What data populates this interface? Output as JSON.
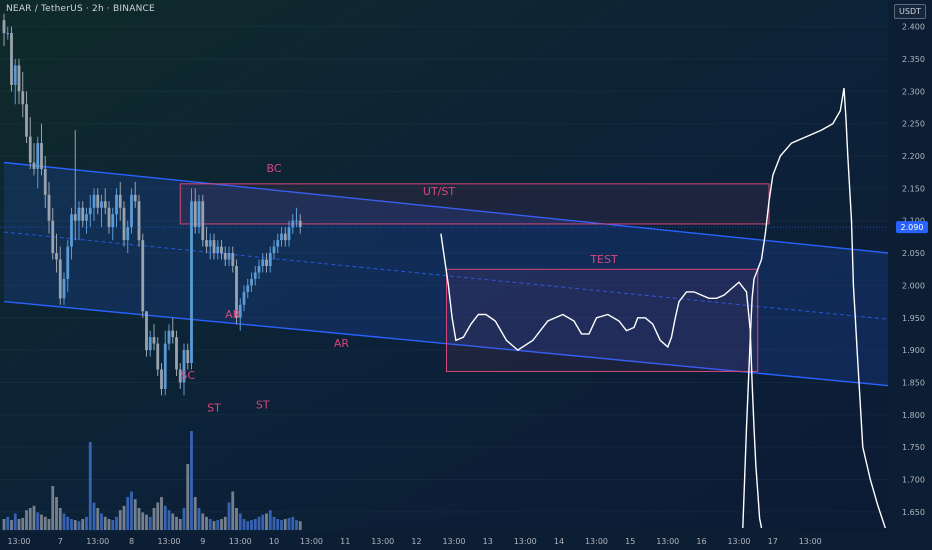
{
  "header": {
    "title": "NEAR / TetherUS · 2h · BINANCE",
    "currency": "USDT"
  },
  "colors": {
    "up": "#5b9bd5",
    "down": "#9aa3ad",
    "channel_line": "#2962ff",
    "zone_border": "#d4487a",
    "label": "#d4487a",
    "path": "#ffffff",
    "price_badge": "#2962ff"
  },
  "chart_data": {
    "type": "candlestick",
    "title": "NEAR / TetherUS · 2h · BINANCE",
    "y_axis": {
      "min": 1.625,
      "max": 2.435,
      "ticks": [
        2.4,
        2.35,
        2.3,
        2.25,
        2.2,
        2.15,
        2.1,
        2.05,
        2.0,
        1.95,
        1.9,
        1.85,
        1.8,
        1.75,
        1.7,
        1.65
      ],
      "tick_labels": [
        "2.400",
        "2.350",
        "2.300",
        "2.250",
        "2.200",
        "2.150",
        "2.100",
        "2.050",
        "2.000",
        "1.950",
        "1.900",
        "1.850",
        "1.800",
        "1.750",
        "1.700",
        "1.650"
      ]
    },
    "x_axis": {
      "labels": [
        "13:00",
        "7",
        "13:00",
        "8",
        "13:00",
        "9",
        "13:00",
        "10",
        "13:00",
        "11",
        "13:00",
        "12",
        "13:00",
        "13",
        "13:00",
        "14",
        "13:00",
        "15",
        "13:00",
        "16",
        "13:00",
        "17",
        "13:00"
      ],
      "label_bar_index": [
        4,
        15,
        25,
        34,
        44,
        53,
        63,
        72,
        82,
        91,
        101,
        110,
        120,
        129,
        139,
        148,
        158,
        167,
        177,
        186,
        196,
        205,
        215
      ]
    },
    "current_price": 2.09,
    "current_price_label": "2.090",
    "candles": [
      [
        2.41,
        2.42,
        2.37,
        2.39
      ],
      [
        2.39,
        2.4,
        2.38,
        2.39
      ],
      [
        2.39,
        2.4,
        2.3,
        2.31
      ],
      [
        2.31,
        2.35,
        2.28,
        2.34
      ],
      [
        2.34,
        2.35,
        2.28,
        2.3
      ],
      [
        2.3,
        2.33,
        2.26,
        2.28
      ],
      [
        2.28,
        2.3,
        2.22,
        2.23
      ],
      [
        2.23,
        2.26,
        2.18,
        2.19
      ],
      [
        2.19,
        2.22,
        2.17,
        2.18
      ],
      [
        2.18,
        2.23,
        2.15,
        2.22
      ],
      [
        2.22,
        2.25,
        2.17,
        2.18
      ],
      [
        2.18,
        2.2,
        2.12,
        2.14
      ],
      [
        2.14,
        2.16,
        2.08,
        2.1
      ],
      [
        2.1,
        2.12,
        2.04,
        2.05
      ],
      [
        2.05,
        2.08,
        2.02,
        2.04
      ],
      [
        2.04,
        2.06,
        1.97,
        1.98
      ],
      [
        1.98,
        2.02,
        1.97,
        2.01
      ],
      [
        2.01,
        2.07,
        1.99,
        2.06
      ],
      [
        2.06,
        2.12,
        2.04,
        2.11
      ],
      [
        2.11,
        2.24,
        2.07,
        2.1
      ],
      [
        2.1,
        2.13,
        2.07,
        2.12
      ],
      [
        2.12,
        2.13,
        2.09,
        2.1
      ],
      [
        2.1,
        2.12,
        2.08,
        2.11
      ],
      [
        2.11,
        2.14,
        2.09,
        2.12
      ],
      [
        2.12,
        2.15,
        2.1,
        2.14
      ],
      [
        2.14,
        2.15,
        2.11,
        2.12
      ],
      [
        2.12,
        2.14,
        2.09,
        2.13
      ],
      [
        2.13,
        2.15,
        2.11,
        2.12
      ],
      [
        2.12,
        2.13,
        2.08,
        2.09
      ],
      [
        2.09,
        2.12,
        2.07,
        2.11
      ],
      [
        2.11,
        2.15,
        2.09,
        2.14
      ],
      [
        2.14,
        2.16,
        2.1,
        2.12
      ],
      [
        2.12,
        2.13,
        2.06,
        2.07
      ],
      [
        2.07,
        2.1,
        2.05,
        2.09
      ],
      [
        2.09,
        2.15,
        2.08,
        2.14
      ],
      [
        2.14,
        2.16,
        2.12,
        2.13
      ],
      [
        2.13,
        2.14,
        2.06,
        2.07
      ],
      [
        2.07,
        2.08,
        1.95,
        1.96
      ],
      [
        1.96,
        1.96,
        1.89,
        1.9
      ],
      [
        1.9,
        1.93,
        1.89,
        1.92
      ],
      [
        1.92,
        1.94,
        1.9,
        1.91
      ],
      [
        1.91,
        1.92,
        1.86,
        1.87
      ],
      [
        1.87,
        1.88,
        1.83,
        1.84
      ],
      [
        1.84,
        1.93,
        1.83,
        1.91
      ],
      [
        1.91,
        1.94,
        1.9,
        1.93
      ],
      [
        1.93,
        1.95,
        1.91,
        1.92
      ],
      [
        1.92,
        1.93,
        1.86,
        1.87
      ],
      [
        1.87,
        1.88,
        1.84,
        1.85
      ],
      [
        1.85,
        1.91,
        1.83,
        1.9
      ],
      [
        1.9,
        1.91,
        1.87,
        1.88
      ],
      [
        1.88,
        2.15,
        1.87,
        2.13
      ],
      [
        2.13,
        2.15,
        2.08,
        2.09
      ],
      [
        2.09,
        2.14,
        2.08,
        2.13
      ],
      [
        2.13,
        2.14,
        2.06,
        2.07
      ],
      [
        2.07,
        2.09,
        2.05,
        2.06
      ],
      [
        2.06,
        2.08,
        2.04,
        2.07
      ],
      [
        2.07,
        2.08,
        2.04,
        2.05
      ],
      [
        2.05,
        2.07,
        2.04,
        2.06
      ],
      [
        2.06,
        2.07,
        2.04,
        2.05
      ],
      [
        2.05,
        2.06,
        2.03,
        2.04
      ],
      [
        2.04,
        2.06,
        2.03,
        2.05
      ],
      [
        2.05,
        2.06,
        2.02,
        2.03
      ],
      [
        2.03,
        2.04,
        1.94,
        1.95
      ],
      [
        1.95,
        1.98,
        1.93,
        1.97
      ],
      [
        1.97,
        2.0,
        1.96,
        1.99
      ],
      [
        1.99,
        2.01,
        1.98,
        2.0
      ],
      [
        2.0,
        2.02,
        1.99,
        2.01
      ],
      [
        2.01,
        2.03,
        2.0,
        2.02
      ],
      [
        2.02,
        2.04,
        2.01,
        2.03
      ],
      [
        2.03,
        2.05,
        2.02,
        2.04
      ],
      [
        2.04,
        2.05,
        2.02,
        2.03
      ],
      [
        2.03,
        2.06,
        2.02,
        2.05
      ],
      [
        2.05,
        2.07,
        2.04,
        2.06
      ],
      [
        2.06,
        2.08,
        2.05,
        2.07
      ],
      [
        2.07,
        2.09,
        2.06,
        2.08
      ],
      [
        2.08,
        2.09,
        2.06,
        2.07
      ],
      [
        2.07,
        2.1,
        2.06,
        2.09
      ],
      [
        2.09,
        2.11,
        2.08,
        2.1
      ],
      [
        2.1,
        2.12,
        2.09,
        2.1
      ],
      [
        2.1,
        2.11,
        2.08,
        2.09
      ]
    ],
    "volumes": [
      0.1,
      0.12,
      0.09,
      0.15,
      0.1,
      0.11,
      0.18,
      0.2,
      0.22,
      0.16,
      0.14,
      0.12,
      0.1,
      0.4,
      0.3,
      0.2,
      0.15,
      0.12,
      0.1,
      0.09,
      0.08,
      0.1,
      0.12,
      0.8,
      0.25,
      0.2,
      0.15,
      0.12,
      0.1,
      0.09,
      0.12,
      0.18,
      0.22,
      0.3,
      0.35,
      0.28,
      0.2,
      0.16,
      0.14,
      0.12,
      0.2,
      0.25,
      0.3,
      0.22,
      0.18,
      0.15,
      0.12,
      0.1,
      0.2,
      0.6,
      0.9,
      0.3,
      0.2,
      0.15,
      0.12,
      0.1,
      0.08,
      0.09,
      0.1,
      0.12,
      0.25,
      0.35,
      0.2,
      0.15,
      0.1,
      0.08,
      0.09,
      0.1,
      0.12,
      0.14,
      0.15,
      0.18,
      0.12,
      0.1,
      0.09,
      0.1,
      0.11,
      0.12,
      0.09,
      0.08
    ],
    "channel": {
      "upper": {
        "from": [
          0,
          2.19
        ],
        "to": [
          236,
          2.05
        ]
      },
      "lower": {
        "from": [
          0,
          1.975
        ],
        "to": [
          236,
          1.845
        ]
      }
    },
    "zones": [
      {
        "name": "ut-st-zone",
        "from_bar": 47,
        "to_bar": 204,
        "top": 2.157,
        "bottom": 2.095
      },
      {
        "name": "test-zone",
        "from_bar": 118,
        "to_bar": 201,
        "top": 2.025,
        "bottom": 1.867
      }
    ],
    "annotations": [
      {
        "text": "BC",
        "bar": 72,
        "price": 2.175
      },
      {
        "text": "UT/ST",
        "bar": 116,
        "price": 2.14
      },
      {
        "text": "TEST",
        "bar": 160,
        "price": 2.035
      },
      {
        "text": "AR",
        "bar": 61,
        "price": 1.95
      },
      {
        "text": "AR",
        "bar": 90,
        "price": 1.905
      },
      {
        "text": "SC",
        "bar": 49,
        "price": 1.855
      },
      {
        "text": "ST",
        "bar": 56,
        "price": 1.805
      },
      {
        "text": "ST",
        "bar": 69,
        "price": 1.81
      }
    ],
    "projection_path": [
      [
        116.5,
        2.08
      ],
      [
        118.5,
        2.0
      ],
      [
        119.5,
        1.95
      ],
      [
        120.5,
        1.915
      ],
      [
        122.5,
        1.92
      ],
      [
        124.5,
        1.94
      ],
      [
        126.5,
        1.955
      ],
      [
        128.5,
        1.955
      ],
      [
        131,
        1.945
      ],
      [
        134,
        1.915
      ],
      [
        137,
        1.9
      ],
      [
        141,
        1.915
      ],
      [
        145,
        1.945
      ],
      [
        149,
        1.955
      ],
      [
        152,
        1.945
      ],
      [
        154,
        1.925
      ],
      [
        156,
        1.925
      ],
      [
        158,
        1.95
      ],
      [
        161,
        1.955
      ],
      [
        164,
        1.945
      ],
      [
        166,
        1.93
      ],
      [
        168,
        1.935
      ],
      [
        169,
        1.95
      ],
      [
        171,
        1.95
      ],
      [
        173,
        1.94
      ],
      [
        175,
        1.915
      ],
      [
        177,
        1.905
      ],
      [
        178,
        1.92
      ],
      [
        179,
        1.95
      ],
      [
        180,
        1.975
      ],
      [
        182,
        1.99
      ],
      [
        184,
        1.99
      ],
      [
        186,
        1.985
      ],
      [
        188,
        1.98
      ],
      [
        190,
        1.98
      ],
      [
        192,
        1.985
      ],
      [
        194,
        1.995
      ],
      [
        196,
        2.005
      ],
      [
        198,
        1.99
      ],
      [
        199,
        1.93
      ],
      [
        199.5,
        1.85
      ],
      [
        200,
        1.78
      ],
      [
        200.5,
        1.72
      ],
      [
        201,
        1.68
      ],
      [
        201.5,
        1.64
      ],
      [
        202,
        1.625
      ]
    ],
    "projection_path_right": [
      [
        197,
        1.625
      ],
      [
        197.5,
        1.7
      ],
      [
        198,
        1.78
      ],
      [
        198.5,
        1.85
      ],
      [
        199,
        1.92
      ],
      [
        199.5,
        1.98
      ],
      [
        200,
        2.01
      ],
      [
        201,
        2.025
      ],
      [
        202,
        2.04
      ],
      [
        203,
        2.08
      ],
      [
        204,
        2.13
      ],
      [
        205,
        2.17
      ],
      [
        207,
        2.2
      ],
      [
        210,
        2.22
      ],
      [
        214,
        2.23
      ],
      [
        218,
        2.24
      ],
      [
        221,
        2.25
      ],
      [
        223,
        2.27
      ],
      [
        224,
        2.305
      ],
      [
        224.5,
        2.26
      ],
      [
        225,
        2.2
      ],
      [
        226,
        2.1
      ],
      [
        226.5,
        2.0
      ],
      [
        227,
        1.95
      ],
      [
        227.5,
        1.9
      ],
      [
        228,
        1.85
      ],
      [
        229,
        1.75
      ],
      [
        231,
        1.7
      ],
      [
        233,
        1.66
      ],
      [
        235,
        1.625
      ]
    ]
  }
}
